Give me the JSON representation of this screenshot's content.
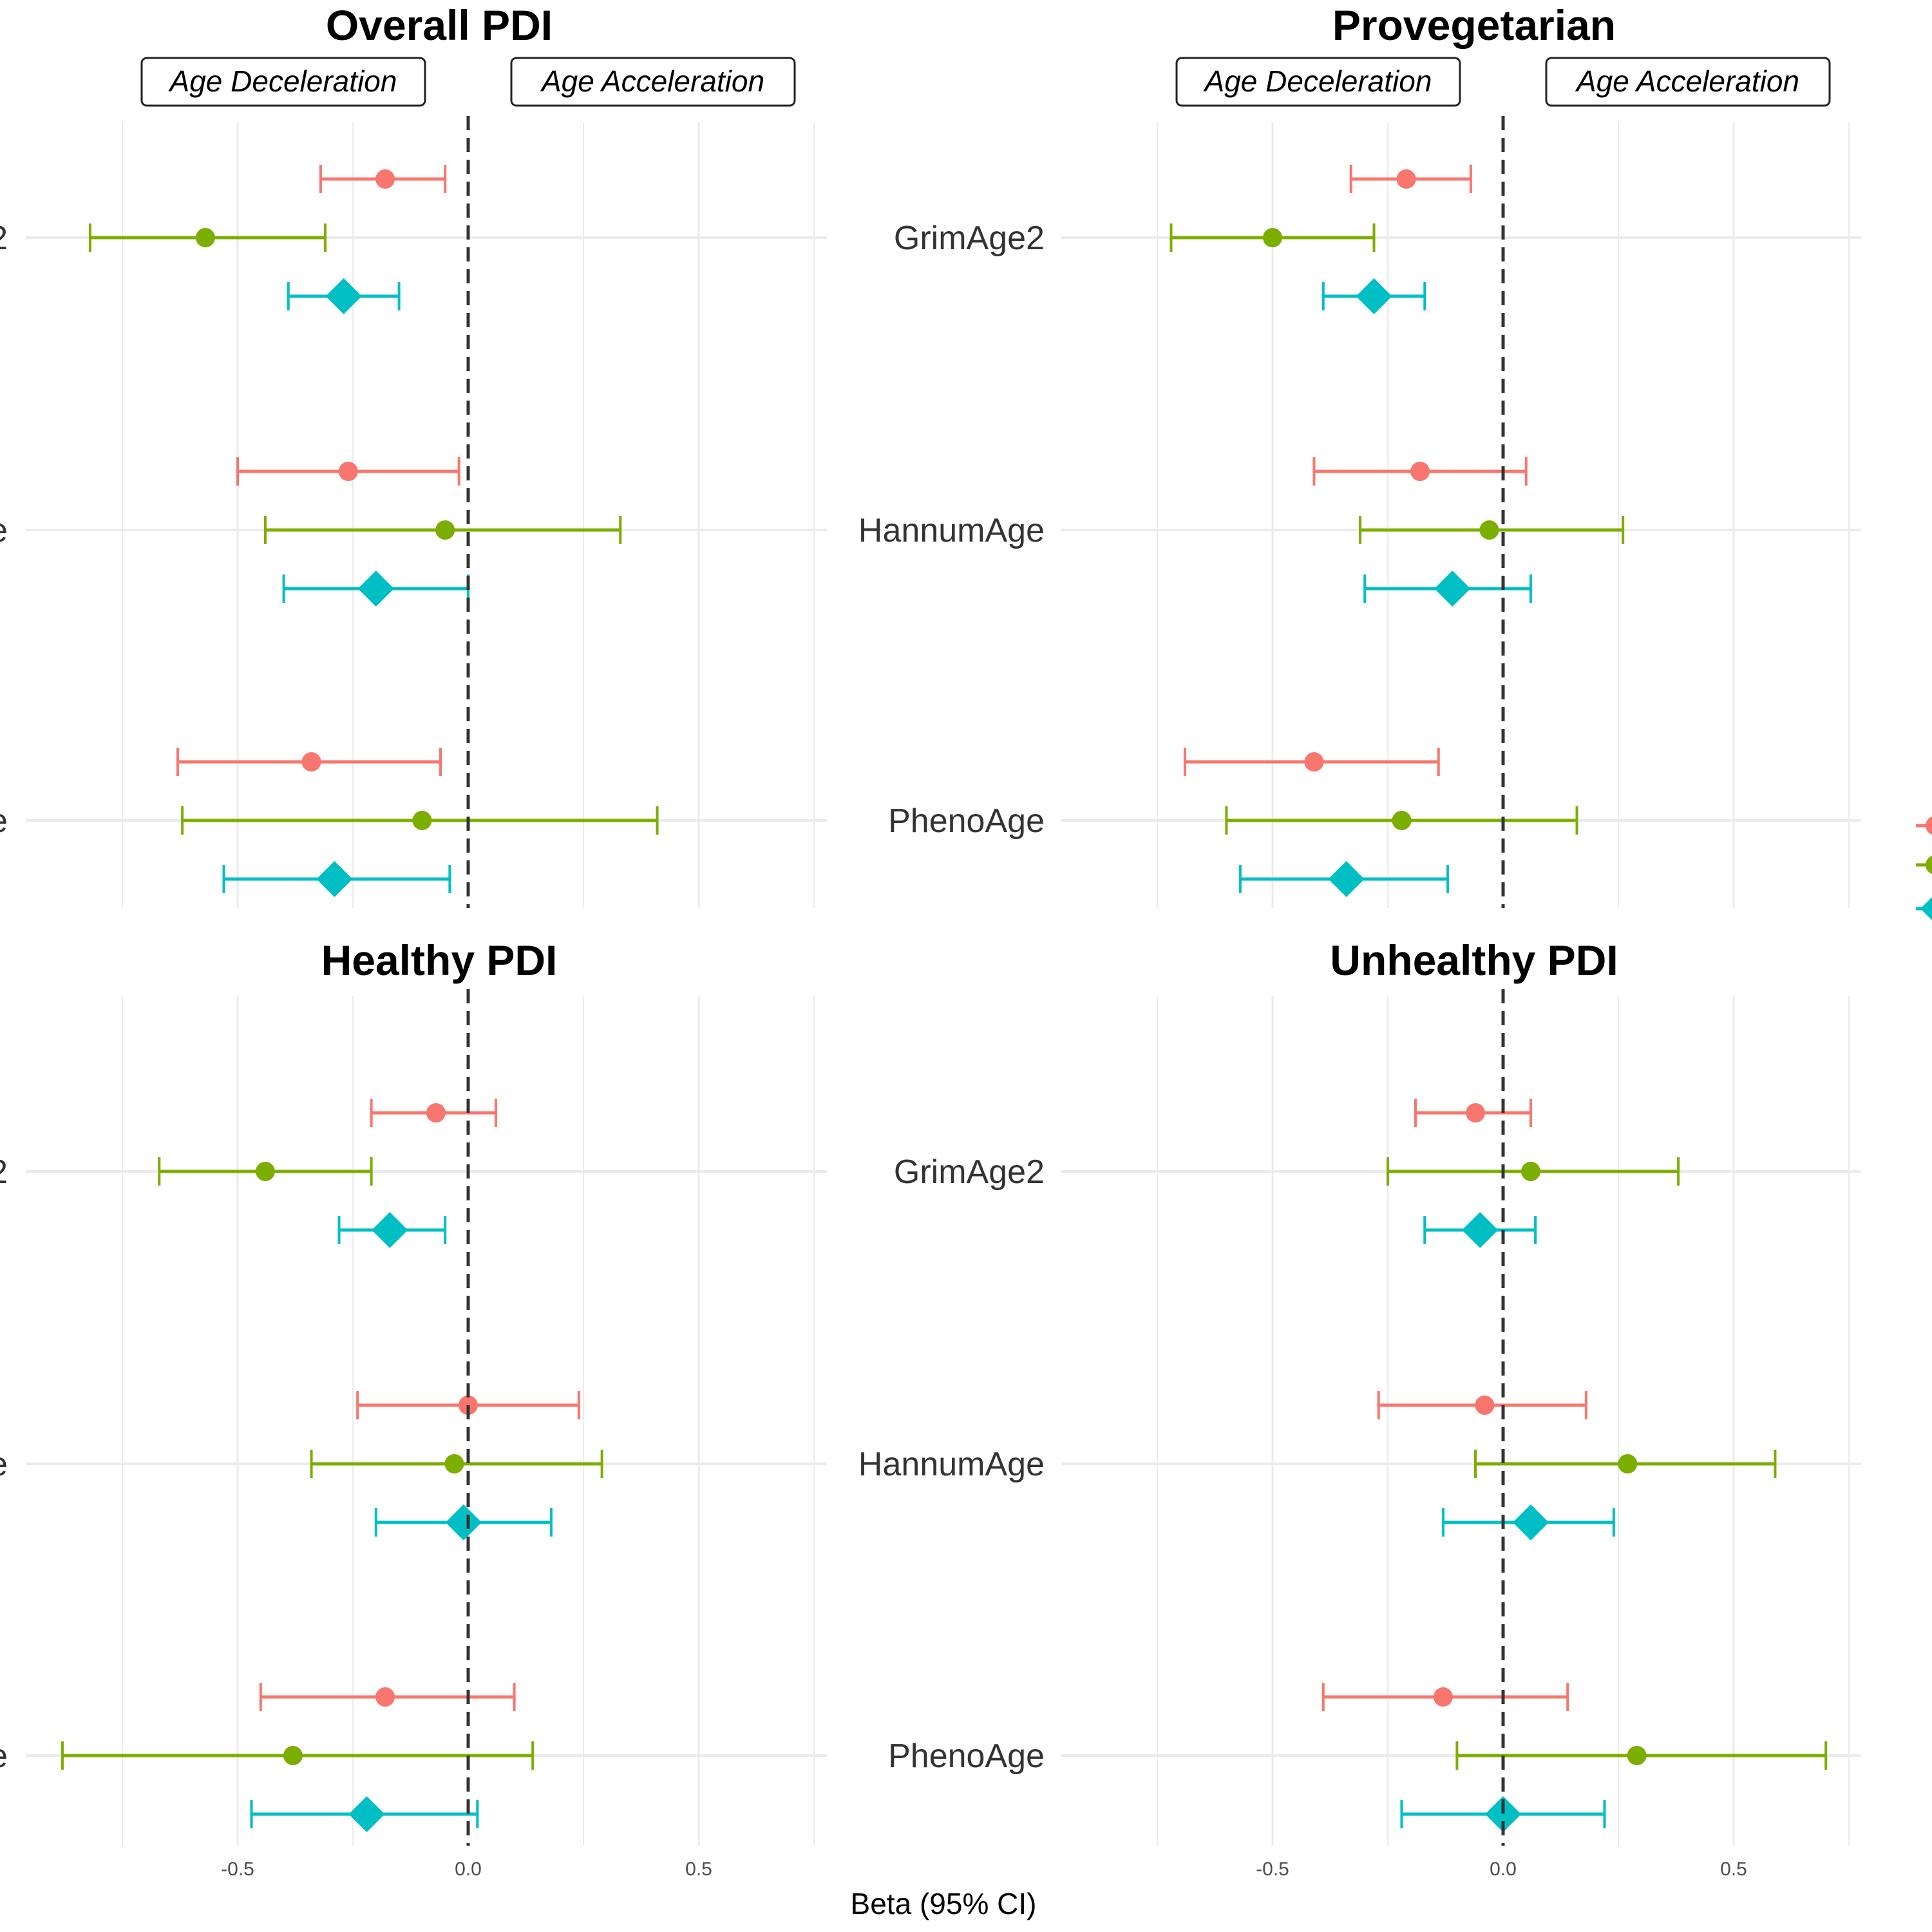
{
  "chart_data": {
    "type": "scatter",
    "subtype": "forest-plot",
    "xlabel": "Beta (95% CI)",
    "xlim": [
      -0.78,
      0.78
    ],
    "xticks": [
      -0.5,
      0.0,
      0.5
    ],
    "xtick_labels": [
      "-0.5",
      "0.0",
      "0.5"
    ],
    "grid": true,
    "reference_line": 0,
    "legend_position": "right (cropped, labels not visible)",
    "categories": [
      "GrimAge2",
      "HannumAge",
      "PhenoAge"
    ],
    "series_styles": [
      {
        "key": "s1",
        "color": "#F8766D",
        "shape": "circle"
      },
      {
        "key": "s2",
        "color": "#7CAE00",
        "shape": "circle"
      },
      {
        "key": "s3",
        "color": "#00BFC4",
        "shape": "diamond"
      }
    ],
    "annotations": {
      "left": "Age Deceleration",
      "right": "Age Acceleration"
    },
    "panels": [
      {
        "title": "Overall PDI",
        "rows": [
          {
            "category": "GrimAge2",
            "values": [
              {
                "series": "s1",
                "beta": -0.18,
                "lo": -0.32,
                "hi": -0.05
              },
              {
                "series": "s2",
                "beta": -0.57,
                "lo": -0.82,
                "hi": -0.31
              },
              {
                "series": "s3",
                "beta": -0.27,
                "lo": -0.39,
                "hi": -0.15
              }
            ]
          },
          {
            "category": "HannumAge",
            "values": [
              {
                "series": "s1",
                "beta": -0.26,
                "lo": -0.5,
                "hi": -0.02
              },
              {
                "series": "s2",
                "beta": -0.05,
                "lo": -0.44,
                "hi": 0.33
              },
              {
                "series": "s3",
                "beta": -0.2,
                "lo": -0.4,
                "hi": 0.0
              }
            ]
          },
          {
            "category": "PhenoAge",
            "values": [
              {
                "series": "s1",
                "beta": -0.34,
                "lo": -0.63,
                "hi": -0.06
              },
              {
                "series": "s2",
                "beta": -0.1,
                "lo": -0.62,
                "hi": 0.41
              },
              {
                "series": "s3",
                "beta": -0.29,
                "lo": -0.53,
                "hi": -0.04
              }
            ]
          }
        ]
      },
      {
        "title": "Provegetarian",
        "rows": [
          {
            "category": "GrimAge2",
            "values": [
              {
                "series": "s1",
                "beta": -0.21,
                "lo": -0.33,
                "hi": -0.07
              },
              {
                "series": "s2",
                "beta": -0.5,
                "lo": -0.72,
                "hi": -0.28
              },
              {
                "series": "s3",
                "beta": -0.28,
                "lo": -0.39,
                "hi": -0.17
              }
            ]
          },
          {
            "category": "HannumAge",
            "values": [
              {
                "series": "s1",
                "beta": -0.18,
                "lo": -0.41,
                "hi": 0.05
              },
              {
                "series": "s2",
                "beta": -0.03,
                "lo": -0.31,
                "hi": 0.26
              },
              {
                "series": "s3",
                "beta": -0.11,
                "lo": -0.3,
                "hi": 0.06
              }
            ]
          },
          {
            "category": "PhenoAge",
            "values": [
              {
                "series": "s1",
                "beta": -0.41,
                "lo": -0.69,
                "hi": -0.14
              },
              {
                "series": "s2",
                "beta": -0.22,
                "lo": -0.6,
                "hi": 0.16
              },
              {
                "series": "s3",
                "beta": -0.34,
                "lo": -0.57,
                "hi": -0.12
              }
            ]
          }
        ]
      },
      {
        "title": "Healthy PDI",
        "rows": [
          {
            "category": "GrimAge2",
            "values": [
              {
                "series": "s1",
                "beta": -0.07,
                "lo": -0.21,
                "hi": 0.06
              },
              {
                "series": "s2",
                "beta": -0.44,
                "lo": -0.67,
                "hi": -0.21
              },
              {
                "series": "s3",
                "beta": -0.17,
                "lo": -0.28,
                "hi": -0.05
              }
            ]
          },
          {
            "category": "HannumAge",
            "values": [
              {
                "series": "s1",
                "beta": 0.0,
                "lo": -0.24,
                "hi": 0.24
              },
              {
                "series": "s2",
                "beta": -0.03,
                "lo": -0.34,
                "hi": 0.29
              },
              {
                "series": "s3",
                "beta": -0.01,
                "lo": -0.2,
                "hi": 0.18
              }
            ]
          },
          {
            "category": "PhenoAge",
            "values": [
              {
                "series": "s1",
                "beta": -0.18,
                "lo": -0.45,
                "hi": 0.1
              },
              {
                "series": "s2",
                "beta": -0.38,
                "lo": -0.88,
                "hi": 0.14
              },
              {
                "series": "s3",
                "beta": -0.22,
                "lo": -0.47,
                "hi": 0.02
              }
            ]
          }
        ]
      },
      {
        "title": "Unhealthy PDI",
        "rows": [
          {
            "category": "GrimAge2",
            "values": [
              {
                "series": "s1",
                "beta": -0.06,
                "lo": -0.19,
                "hi": 0.06
              },
              {
                "series": "s2",
                "beta": 0.06,
                "lo": -0.25,
                "hi": 0.38
              },
              {
                "series": "s3",
                "beta": -0.05,
                "lo": -0.17,
                "hi": 0.07
              }
            ]
          },
          {
            "category": "HannumAge",
            "values": [
              {
                "series": "s1",
                "beta": -0.04,
                "lo": -0.27,
                "hi": 0.18
              },
              {
                "series": "s2",
                "beta": 0.27,
                "lo": -0.06,
                "hi": 0.59
              },
              {
                "series": "s3",
                "beta": 0.06,
                "lo": -0.13,
                "hi": 0.24
              }
            ]
          },
          {
            "category": "PhenoAge",
            "values": [
              {
                "series": "s1",
                "beta": -0.13,
                "lo": -0.39,
                "hi": 0.14
              },
              {
                "series": "s2",
                "beta": 0.29,
                "lo": -0.1,
                "hi": 0.7
              },
              {
                "series": "s3",
                "beta": 0.0,
                "lo": -0.22,
                "hi": 0.22
              }
            ]
          }
        ]
      }
    ]
  }
}
